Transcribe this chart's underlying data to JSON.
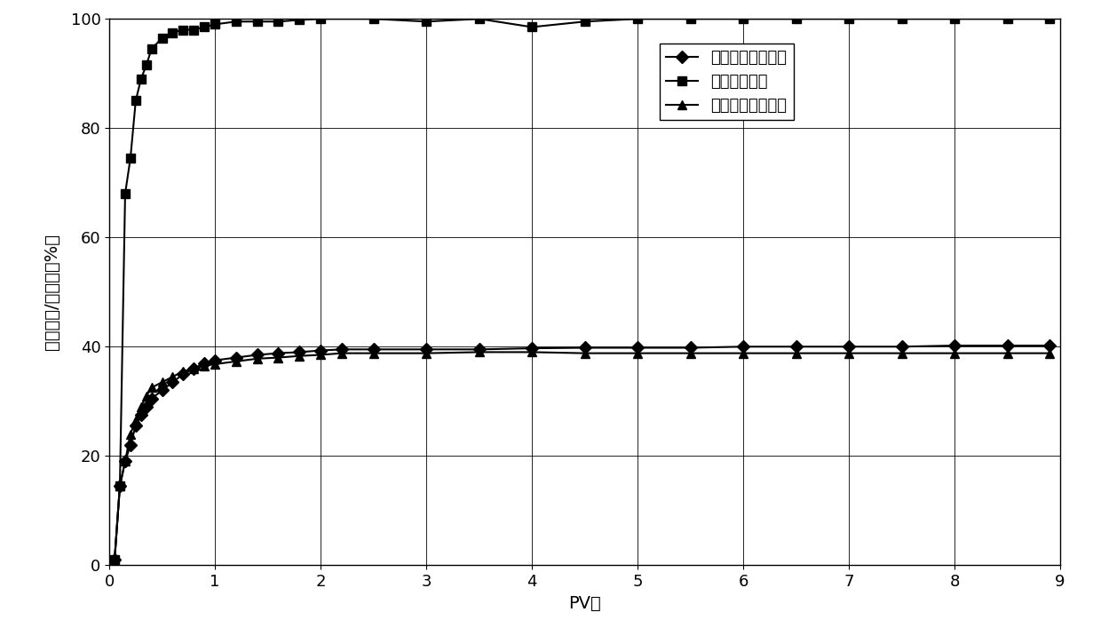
{
  "series1_label": "空气驱驱驱油效率",
  "series2_label": "空气驱含水率",
  "series3_label": "极限水驱驱油效率",
  "xlabel": "PV数",
  "ylabel": "采出程度/含水率（%）",
  "xlim": [
    0,
    9
  ],
  "ylim": [
    0,
    100
  ],
  "xticks": [
    0,
    1,
    2,
    3,
    4,
    5,
    6,
    7,
    8,
    9
  ],
  "yticks": [
    0,
    20,
    40,
    60,
    80,
    100
  ],
  "color": "#000000",
  "series1_x": [
    0.05,
    0.1,
    0.15,
    0.2,
    0.25,
    0.3,
    0.35,
    0.4,
    0.5,
    0.6,
    0.7,
    0.8,
    0.9,
    1.0,
    1.2,
    1.4,
    1.6,
    1.8,
    2.0,
    2.2,
    2.5,
    3.0,
    3.5,
    4.0,
    4.5,
    5.0,
    5.5,
    6.0,
    6.5,
    7.0,
    7.5,
    8.0,
    8.5,
    8.9
  ],
  "series1_y": [
    1.0,
    14.5,
    19.0,
    22.0,
    25.5,
    27.5,
    29.0,
    30.5,
    32.0,
    33.5,
    35.0,
    36.0,
    37.0,
    37.5,
    38.0,
    38.5,
    38.8,
    39.0,
    39.3,
    39.5,
    39.5,
    39.5,
    39.5,
    39.7,
    39.8,
    39.8,
    39.8,
    40.0,
    40.0,
    40.0,
    40.0,
    40.2,
    40.2,
    40.2
  ],
  "series2_x": [
    0.05,
    0.1,
    0.15,
    0.2,
    0.25,
    0.3,
    0.35,
    0.4,
    0.5,
    0.6,
    0.7,
    0.8,
    0.9,
    1.0,
    1.2,
    1.4,
    1.6,
    1.8,
    2.0,
    2.5,
    3.0,
    3.5,
    4.0,
    4.5,
    5.0,
    5.5,
    6.0,
    6.5,
    7.0,
    7.5,
    8.0,
    8.5,
    8.9
  ],
  "series2_y": [
    1.0,
    14.5,
    68.0,
    74.5,
    85.0,
    89.0,
    91.5,
    94.5,
    96.5,
    97.5,
    98.0,
    98.0,
    98.5,
    99.0,
    99.5,
    99.5,
    99.5,
    99.8,
    100.0,
    100.0,
    99.5,
    100.0,
    98.5,
    99.5,
    100.0,
    100.0,
    100.0,
    100.0,
    100.0,
    100.0,
    100.0,
    100.0,
    100.0
  ],
  "series3_x": [
    0.05,
    0.1,
    0.15,
    0.2,
    0.25,
    0.3,
    0.35,
    0.4,
    0.5,
    0.6,
    0.7,
    0.8,
    0.9,
    1.0,
    1.2,
    1.4,
    1.6,
    1.8,
    2.0,
    2.2,
    2.5,
    3.0,
    3.5,
    4.0,
    4.5,
    5.0,
    5.5,
    6.0,
    6.5,
    7.0,
    7.5,
    8.0,
    8.5,
    8.9
  ],
  "series3_y": [
    1.0,
    14.5,
    19.0,
    24.0,
    26.5,
    29.0,
    31.0,
    32.5,
    33.5,
    34.5,
    35.5,
    36.0,
    36.5,
    36.8,
    37.3,
    37.8,
    38.0,
    38.3,
    38.5,
    38.8,
    38.8,
    38.8,
    39.0,
    39.0,
    38.8,
    38.8,
    38.8,
    38.8,
    38.8,
    38.8,
    38.8,
    38.8,
    38.8,
    38.8
  ],
  "fontsize_label": 14,
  "fontsize_tick": 13,
  "fontsize_legend": 13,
  "linewidth": 1.5,
  "markersize": 7
}
